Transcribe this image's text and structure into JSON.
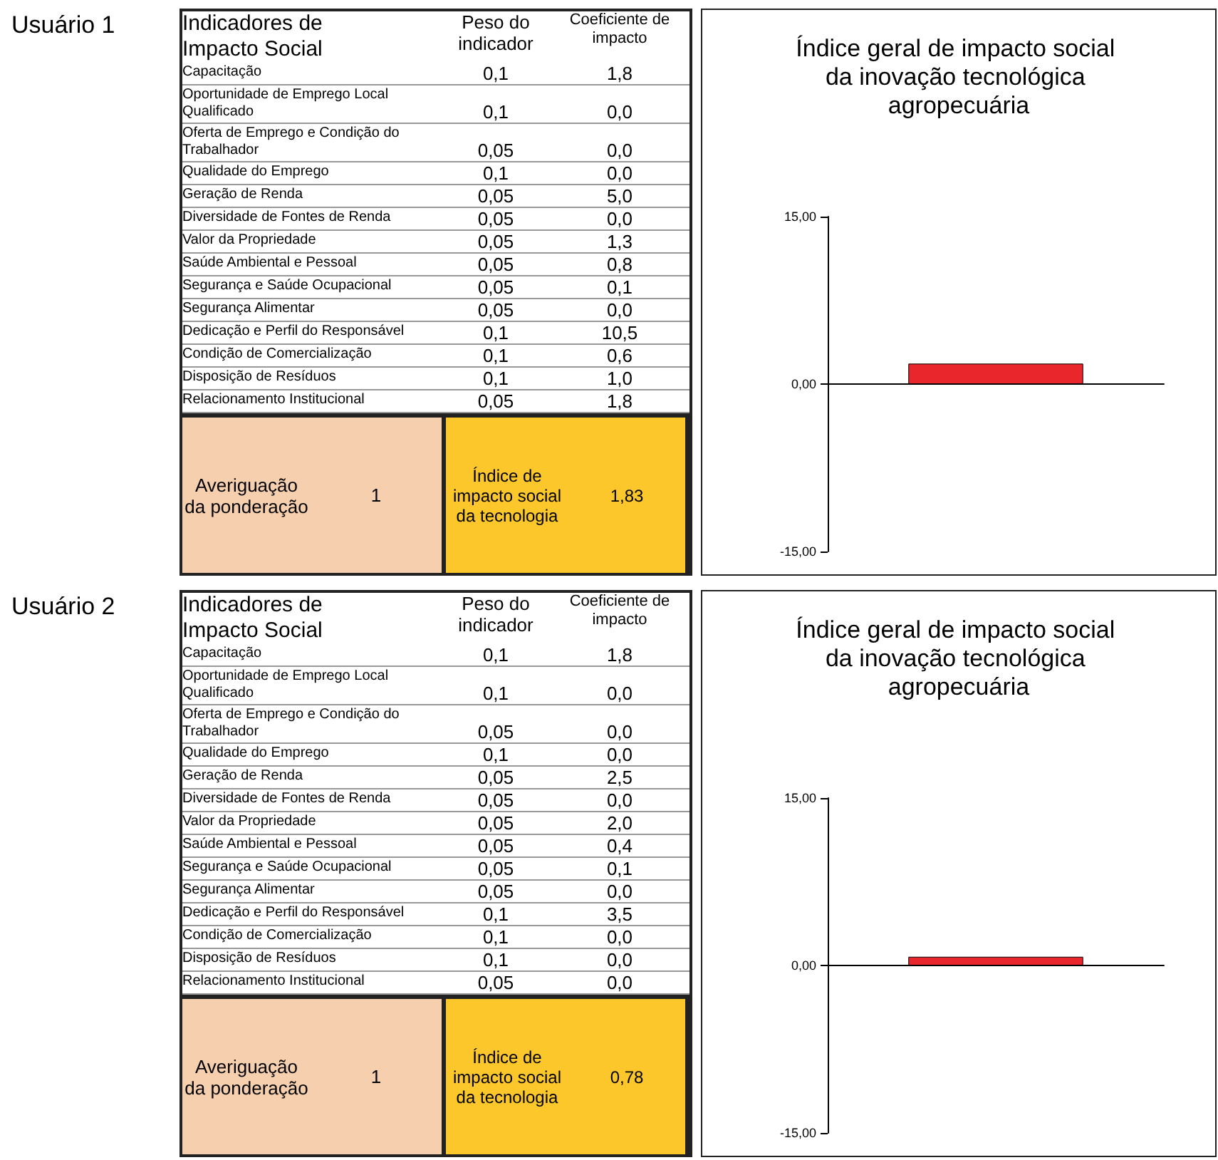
{
  "chart_data": [
    {
      "type": "other",
      "subtitle": "Usuário 1",
      "title": "Indicadores de Impacto Social",
      "annotations": [
        "Peso do indicador",
        "Coeficiente de impacto",
        "Capacitação",
        "0,1",
        "1,8",
        "Oportunidade de Emprego Local Qualificado",
        "0,1",
        "0,0",
        "Oferta de Emprego e Condição do Trabalhador",
        "0,05",
        "0,0",
        "Qualidade do Emprego",
        "0,1",
        "0,0",
        "Geração de Renda",
        "0,05",
        "5,0",
        "Diversidade de Fontes de Renda",
        "0,05",
        "0,0",
        "Valor da Propriedade",
        "0,05",
        "1,3",
        "Saúde Ambiental e Pessoal",
        "0,05",
        "0,8",
        "Segurança e Saúde Ocupacional",
        "0,05",
        "0,1",
        "Segurança Alimentar",
        "0,05",
        "0,0",
        "Dedicação e Perfil do Responsável",
        "0,1",
        "10,5",
        "Condição de Comercialização",
        "0,1",
        "0,6",
        "Disposição de Resíduos",
        "0,1",
        "1,0",
        "Relacionamento Institucional",
        "0,05",
        "1,8",
        "Averiguação da ponderação",
        "1",
        "Índice de impacto social da tecnologia",
        "1,83"
      ]
    },
    {
      "type": "bar",
      "title": "Índice geral de impacto social da inovação tecnológica agropecuária",
      "categories": [
        null
      ],
      "values": [
        1.83
      ],
      "color": "#e8262b",
      "ylim": [
        -15,
        15
      ],
      "yticks": [
        {
          "value": 15,
          "label": "15,00"
        },
        {
          "value": 0,
          "label": "0,00"
        },
        {
          "value": -15,
          "label": "-15,00"
        }
      ],
      "tick_labels": "y"
    },
    {
      "type": "other",
      "subtitle": "Usuário 2",
      "title": "Indicadores de Impacto Social",
      "annotations": [
        "Peso do indicador",
        "Coeficiente de impacto",
        "Capacitação",
        "0,1",
        "1,8",
        "Oportunidade de Emprego Local Qualificado",
        "0,1",
        "0,0",
        "Oferta de Emprego e Condição do Trabalhador",
        "0,05",
        "0,0",
        "Qualidade do Emprego",
        "0,1",
        "0,0",
        "Geração de Renda",
        "0,05",
        "2,5",
        "Diversidade de Fontes de Renda",
        "0,05",
        "0,0",
        "Valor da Propriedade",
        "0,05",
        "2,0",
        "Saúde Ambiental e Pessoal",
        "0,05",
        "0,4",
        "Segurança e Saúde Ocupacional",
        "0,05",
        "0,1",
        "Segurança Alimentar",
        "0,05",
        "0,0",
        "Dedicação e Perfil do Responsável",
        "0,1",
        "3,5",
        "Condição de Comercialização",
        "0,1",
        "0,0",
        "Disposição de Resíduos",
        "0,1",
        "0,0",
        "Relacionamento Institucional",
        "0,05",
        "0,0",
        "Averiguação da ponderação",
        "1",
        "Índice de impacto social da tecnologia",
        "0,78"
      ]
    },
    {
      "type": "bar",
      "title": "Índice geral de impacto social da inovação tecnológica agropecuária",
      "categories": [
        null
      ],
      "values": [
        0.78
      ],
      "color": "#e8262b",
      "ylim": [
        -15,
        15
      ],
      "yticks": [
        {
          "value": 15,
          "label": "15,00"
        },
        {
          "value": 0,
          "label": "0,00"
        },
        {
          "value": -15,
          "label": "-15,00"
        }
      ],
      "tick_labels": "y"
    }
  ]
}
